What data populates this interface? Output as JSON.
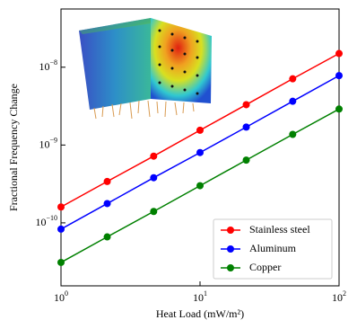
{
  "chart_data": {
    "type": "line",
    "x_label": "Heat Load (mW/m²)",
    "y_label": "Fractional Frequency Change",
    "x": [
      1,
      2.15,
      4.64,
      10,
      21.5,
      46.4,
      100
    ],
    "series": [
      {
        "name": "Stainless steel",
        "color": "#ff0000",
        "values": [
          1.6e-10,
          3.4e-10,
          7.2e-10,
          1.55e-09,
          3.3e-09,
          7.1e-09,
          1.5e-08
        ]
      },
      {
        "name": "Aluminum",
        "color": "#0000ff",
        "values": [
          8.3e-11,
          1.77e-10,
          3.8e-10,
          8e-10,
          1.7e-09,
          3.65e-09,
          7.8e-09
        ]
      },
      {
        "name": "Copper",
        "color": "#008000",
        "values": [
          3.1e-11,
          6.6e-11,
          1.4e-10,
          3e-10,
          6.4e-10,
          1.37e-09,
          2.9e-09
        ]
      }
    ],
    "x_log": true,
    "y_log": true,
    "xlim": [
      1,
      100
    ],
    "ylim": [
      1.55e-11,
      5.6e-08
    ],
    "xticks": [
      {
        "value": 1,
        "label": "10",
        "exponent": "0"
      },
      {
        "value": 10,
        "label": "10",
        "exponent": "1"
      },
      {
        "value": 100,
        "label": "10",
        "exponent": "2"
      }
    ],
    "yticks": [
      {
        "value": 1e-10,
        "label": "10",
        "exponent": "−10"
      },
      {
        "value": 1e-09,
        "label": "10",
        "exponent": "−9"
      },
      {
        "value": 1e-08,
        "label": "10",
        "exponent": "−8"
      }
    ],
    "legend": "lower right"
  }
}
